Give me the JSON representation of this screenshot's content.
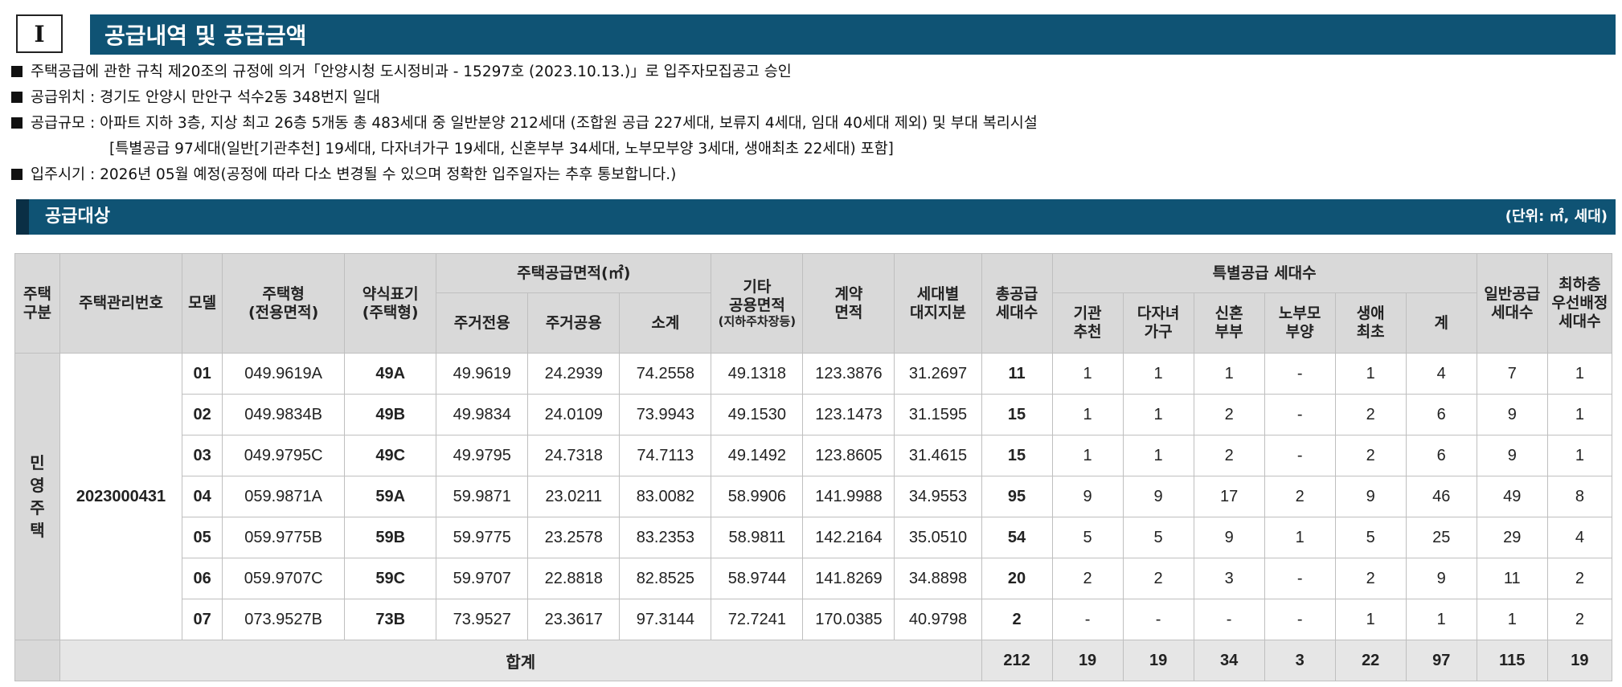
{
  "section": {
    "number": "I",
    "title": "공급내역 및 공급금액"
  },
  "bullets": [
    "주택공급에 관한 규칙 제20조의 규정에 의거「안양시청 도시정비과 - 15297호 (2023.10.13.)」로 입주자모집공고 승인",
    "공급위치 : 경기도 안양시 만안구 석수2동 348번지 일대",
    "공급규모 : 아파트 지하 3층, 지상 최고 26층 5개동 총 483세대 중 일반분양 212세대 (조합원 공급 227세대, 보류지 4세대, 임대 40세대 제외) 및 부대 복리시설",
    "[특별공급 97세대(일반[기관추천] 19세대, 다자녀가구 19세대, 신혼부부 34세대, 노부모부양 3세대, 생애최초 22세대) 포함]",
    "입주시기 : 2026년 05월 예정(공정에 따라 다소 변경될 수 있으며 정확한 입주일자는 추후 통보합니다.)"
  ],
  "subheader": {
    "title": "공급대상",
    "unit": "(단위: ㎡, 세대)"
  },
  "headers": {
    "house_type_category": "주택\n구분",
    "mgmt_no": "주택관리번호",
    "model": "모델",
    "house_type": "주택형\n(전용면적)",
    "abbr": "약식표기\n(주택형)",
    "supply_area": "주택공급면적(㎡)",
    "exclusive": "주거전용",
    "common": "주거공용",
    "subtotal": "소계",
    "other_common": "기타\n공용면적",
    "other_common_note": "(지하주차장등)",
    "contract_area": "계약\n면적",
    "land_share": "세대별\n대지지분",
    "total_units": "총공급\n세대수",
    "special": "특별공급 세대수",
    "agency": "기관\n추천",
    "multi_child": "다자녀\n가구",
    "newlywed": "신혼\n부부",
    "elderly": "노부모\n부양",
    "first_time": "생애\n최초",
    "special_sum": "계",
    "general": "일반공급\n세대수",
    "lowest_floor": "최하층\n우선배정\n세대수"
  },
  "category": "민\n영\n주\n택",
  "mgmt_no": "2023000431",
  "rows": [
    {
      "model": "01",
      "type": "049.9619A",
      "abbr": "49A",
      "excl": "49.9619",
      "comm": "24.2939",
      "sub": "74.2558",
      "other": "49.1318",
      "contract": "123.3876",
      "land": "31.2697",
      "total": "11",
      "agency": "1",
      "multi": "1",
      "newly": "1",
      "elder": "-",
      "first": "1",
      "ssum": "4",
      "general": "7",
      "lowest": "1"
    },
    {
      "model": "02",
      "type": "049.9834B",
      "abbr": "49B",
      "excl": "49.9834",
      "comm": "24.0109",
      "sub": "73.9943",
      "other": "49.1530",
      "contract": "123.1473",
      "land": "31.1595",
      "total": "15",
      "agency": "1",
      "multi": "1",
      "newly": "2",
      "elder": "-",
      "first": "2",
      "ssum": "6",
      "general": "9",
      "lowest": "1"
    },
    {
      "model": "03",
      "type": "049.9795C",
      "abbr": "49C",
      "excl": "49.9795",
      "comm": "24.7318",
      "sub": "74.7113",
      "other": "49.1492",
      "contract": "123.8605",
      "land": "31.4615",
      "total": "15",
      "agency": "1",
      "multi": "1",
      "newly": "2",
      "elder": "-",
      "first": "2",
      "ssum": "6",
      "general": "9",
      "lowest": "1"
    },
    {
      "model": "04",
      "type": "059.9871A",
      "abbr": "59A",
      "excl": "59.9871",
      "comm": "23.0211",
      "sub": "83.0082",
      "other": "58.9906",
      "contract": "141.9988",
      "land": "34.9553",
      "total": "95",
      "agency": "9",
      "multi": "9",
      "newly": "17",
      "elder": "2",
      "first": "9",
      "ssum": "46",
      "general": "49",
      "lowest": "8"
    },
    {
      "model": "05",
      "type": "059.9775B",
      "abbr": "59B",
      "excl": "59.9775",
      "comm": "23.2578",
      "sub": "83.2353",
      "other": "58.9811",
      "contract": "142.2164",
      "land": "35.0510",
      "total": "54",
      "agency": "5",
      "multi": "5",
      "newly": "9",
      "elder": "1",
      "first": "5",
      "ssum": "25",
      "general": "29",
      "lowest": "4"
    },
    {
      "model": "06",
      "type": "059.9707C",
      "abbr": "59C",
      "excl": "59.9707",
      "comm": "22.8818",
      "sub": "82.8525",
      "other": "58.9744",
      "contract": "141.8269",
      "land": "34.8898",
      "total": "20",
      "agency": "2",
      "multi": "2",
      "newly": "3",
      "elder": "-",
      "first": "2",
      "ssum": "9",
      "general": "11",
      "lowest": "2"
    },
    {
      "model": "07",
      "type": "073.9527B",
      "abbr": "73B",
      "excl": "73.9527",
      "comm": "23.3617",
      "sub": "97.3144",
      "other": "72.7241",
      "contract": "170.0385",
      "land": "40.9798",
      "total": "2",
      "agency": "-",
      "multi": "-",
      "newly": "-",
      "elder": "-",
      "first": "1",
      "ssum": "1",
      "general": "1",
      "lowest": "2"
    }
  ],
  "total_row": {
    "label": "합계",
    "total": "212",
    "agency": "19",
    "multi": "19",
    "newly": "34",
    "elder": "3",
    "first": "22",
    "ssum": "97",
    "general": "115",
    "lowest": "19"
  }
}
